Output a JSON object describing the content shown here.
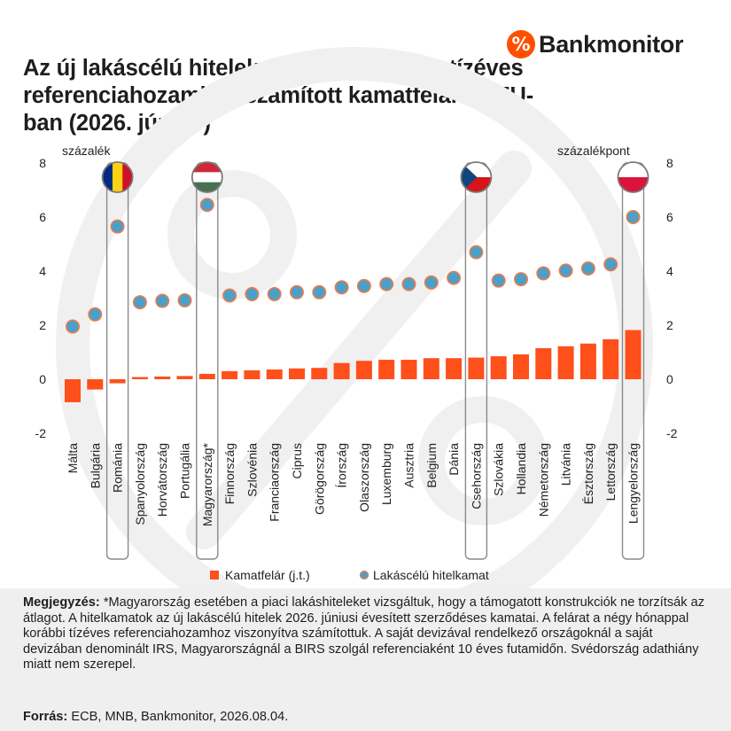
{
  "header": {
    "title": "Az új lakáscélú hitelek átlagkamata és a tízéves referenciahozamhoz számított kamatfelár az EU-ban (2026. június)",
    "brand": "Bankmonitor",
    "brand_logo_symbol": "%"
  },
  "chart_data": {
    "type": "bar+scatter",
    "left_axis_label": "százalék",
    "right_axis_label": "százalékpont",
    "ylim": [
      -2,
      8
    ],
    "yticks": [
      -2,
      0,
      2,
      4,
      6,
      8
    ],
    "categories": [
      "Málta",
      "Bulgária",
      "Románia",
      "Spanyolország",
      "Horvátország",
      "Portugália",
      "Magyarország*",
      "Finnország",
      "Szlovénia",
      "Franciaország",
      "Ciprus",
      "Görögország",
      "Írország",
      "Olaszország",
      "Luxemburg",
      "Ausztria",
      "Belgium",
      "Dánia",
      "Csehország",
      "Szlovákia",
      "Hollandia",
      "Németország",
      "Litvánia",
      "Észtország",
      "Lettország",
      "Lengyelország"
    ],
    "series": [
      {
        "name": "Kamatfelár (j.t.)",
        "kind": "bar",
        "color": "#ff4f1a",
        "values": [
          -0.85,
          -0.38,
          -0.15,
          0.08,
          0.1,
          0.12,
          0.2,
          0.3,
          0.33,
          0.36,
          0.4,
          0.42,
          0.6,
          0.68,
          0.72,
          0.72,
          0.78,
          0.78,
          0.8,
          0.85,
          0.92,
          1.15,
          1.22,
          1.32,
          1.48,
          1.82
        ]
      },
      {
        "name": "Lakáscélú hitelkamat",
        "kind": "scatter",
        "color": "#4aa0c8",
        "edge_color": "#f07a4a",
        "values": [
          1.95,
          2.4,
          5.65,
          2.85,
          2.9,
          2.92,
          6.45,
          3.1,
          3.15,
          3.15,
          3.22,
          3.22,
          3.4,
          3.45,
          3.52,
          3.52,
          3.58,
          3.75,
          4.7,
          3.65,
          3.7,
          3.92,
          4.02,
          4.1,
          4.25,
          6.0
        ]
      }
    ],
    "highlighted": [
      {
        "category": "Románia",
        "flag": "romania-flag"
      },
      {
        "category": "Magyarország*",
        "flag": "hungary-flag"
      },
      {
        "category": "Csehország",
        "flag": "czech-flag"
      },
      {
        "category": "Lengyelország",
        "flag": "poland-flag"
      }
    ],
    "legend_position": "bottom",
    "grid": false
  },
  "notes": {
    "label": "Megjegyzés:",
    "text": "*Magyarország esetében a piaci lakáshiteleket vizsgáltuk, hogy a támogatott konstrukciók ne torzítsák az átlagot. A hitelkamatok az új lakáscélú hitelek 2026. júniusi évesített szerződéses kamatai. A felárat a négy hónappal korábbi tízéves referenciahozamhoz viszonyítva számítottuk. A saját devizával rendelkező országoknál a saját devizában denominált IRS, Magyarországnál a BIRS szolgál referenciaként 10 éves futamidőn. Svédország adathiány miatt nem szerepel.",
    "source_label": "Forrás:",
    "source_text": "ECB, MNB, Bankmonitor, 2026.08.04."
  }
}
